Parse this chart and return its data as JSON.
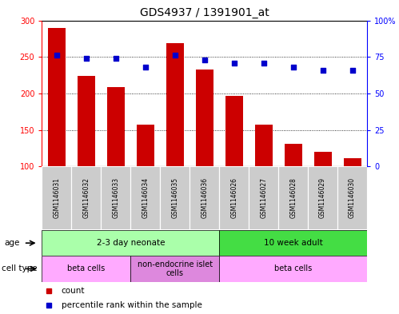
{
  "title": "GDS4937 / 1391901_at",
  "samples": [
    "GSM1146031",
    "GSM1146032",
    "GSM1146033",
    "GSM1146034",
    "GSM1146035",
    "GSM1146036",
    "GSM1146026",
    "GSM1146027",
    "GSM1146028",
    "GSM1146029",
    "GSM1146030"
  ],
  "counts": [
    290,
    224,
    209,
    157,
    269,
    233,
    197,
    157,
    131,
    120,
    111
  ],
  "percentiles": [
    76,
    74,
    74,
    68,
    76,
    73,
    71,
    71,
    68,
    66,
    66
  ],
  "ylim_left": [
    100,
    300
  ],
  "ylim_right": [
    0,
    100
  ],
  "yticks_left": [
    100,
    150,
    200,
    250,
    300
  ],
  "yticks_right": [
    0,
    25,
    50,
    75,
    100
  ],
  "bar_color": "#CC0000",
  "dot_color": "#0000CC",
  "age_groups": [
    {
      "label": "2-3 day neonate",
      "start": 0,
      "end": 6,
      "color": "#AAFFAA"
    },
    {
      "label": "10 week adult",
      "start": 6,
      "end": 11,
      "color": "#44DD44"
    }
  ],
  "cell_type_groups": [
    {
      "label": "beta cells",
      "start": 0,
      "end": 3,
      "color": "#FFAAFF"
    },
    {
      "label": "non-endocrine islet\ncells",
      "start": 3,
      "end": 6,
      "color": "#DD88DD"
    },
    {
      "label": "beta cells",
      "start": 6,
      "end": 11,
      "color": "#FFAAFF"
    }
  ],
  "legend_items": [
    {
      "label": "count",
      "color": "#CC0000"
    },
    {
      "label": "percentile rank within the sample",
      "color": "#0000CC"
    }
  ],
  "title_fontsize": 10,
  "tick_fontsize": 7,
  "annot_fontsize": 7.5
}
